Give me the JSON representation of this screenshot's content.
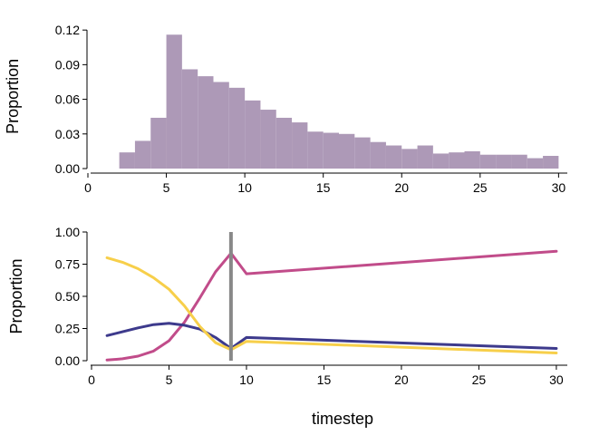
{
  "chart_data": [
    {
      "type": "bar",
      "ylabel": "Proportion",
      "xlabel": "",
      "xlim": [
        0,
        32
      ],
      "ylim": [
        0,
        0.125
      ],
      "xticks": [
        0,
        5,
        10,
        15,
        20,
        25,
        30
      ],
      "yticks": [
        0.0,
        0.03,
        0.06,
        0.09,
        0.12
      ],
      "ytick_labels": [
        "0.00",
        "0.03",
        "0.06",
        "0.09",
        "0.12"
      ],
      "grid": false,
      "color": "#ad99b7",
      "bin_edges": [
        2,
        3,
        4,
        5,
        6,
        7,
        8,
        9,
        10,
        11,
        12,
        13,
        14,
        15,
        16,
        17,
        18,
        19,
        20,
        21,
        22,
        23,
        24,
        25,
        26,
        27,
        28,
        29,
        30
      ],
      "values": [
        0.014,
        0.024,
        0.044,
        0.116,
        0.086,
        0.08,
        0.075,
        0.07,
        0.059,
        0.051,
        0.044,
        0.04,
        0.032,
        0.031,
        0.03,
        0.027,
        0.023,
        0.02,
        0.017,
        0.02,
        0.013,
        0.014,
        0.015,
        0.012,
        0.012,
        0.012,
        0.009,
        0.011
      ]
    },
    {
      "type": "line",
      "ylabel": "Proportion",
      "xlabel": "timestep",
      "xlim": [
        0,
        31
      ],
      "ylim": [
        0,
        1.0
      ],
      "xticks": [
        0,
        5,
        10,
        15,
        20,
        25,
        30
      ],
      "yticks": [
        0.0,
        0.25,
        0.5,
        0.75,
        1.0
      ],
      "ytick_labels": [
        "0.00",
        "0.25",
        "0.50",
        "0.75",
        "1.00"
      ],
      "grid": false,
      "vline": {
        "x": 9,
        "y_range": [
          0,
          1.0
        ],
        "color": "#888888"
      },
      "series": [
        {
          "color": "#c14c8a",
          "x": [
            1,
            2,
            3,
            4,
            5,
            6,
            7,
            8,
            9,
            10,
            30
          ],
          "y": [
            0.005,
            0.015,
            0.035,
            0.075,
            0.155,
            0.3,
            0.49,
            0.69,
            0.835,
            0.675,
            0.85
          ]
        },
        {
          "color": "#3d3a8c",
          "x": [
            1,
            2,
            3,
            4,
            5,
            6,
            7,
            8,
            9,
            10,
            30
          ],
          "y": [
            0.195,
            0.225,
            0.255,
            0.28,
            0.29,
            0.275,
            0.245,
            0.18,
            0.095,
            0.18,
            0.095
          ]
        },
        {
          "color": "#f7cf4a",
          "x": [
            1,
            2,
            3,
            4,
            5,
            6,
            7,
            8,
            9,
            10,
            30
          ],
          "y": [
            0.8,
            0.765,
            0.715,
            0.645,
            0.555,
            0.425,
            0.265,
            0.14,
            0.085,
            0.15,
            0.06
          ]
        }
      ]
    }
  ]
}
